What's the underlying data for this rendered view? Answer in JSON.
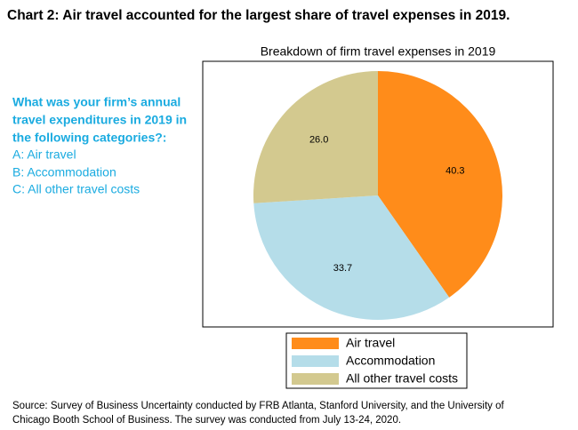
{
  "header": {
    "title": "Chart 2: Air travel accounted for the largest share of travel expenses in 2019."
  },
  "question": {
    "lines": [
      "What was your firm’s annual",
      "travel expenditures in 2019 in",
      "the following categories?:"
    ],
    "options": [
      "A: Air travel",
      "B: Accommodation",
      "C: All other travel costs"
    ]
  },
  "chart_data": {
    "type": "pie",
    "title": "Breakdown of firm travel expenses in 2019",
    "categories": [
      "Air travel",
      "Accommodation",
      "All other travel costs"
    ],
    "values": [
      40.3,
      33.7,
      26.0
    ],
    "value_labels": [
      "40.3",
      "33.7",
      "26.0"
    ],
    "colors": [
      "#ff8c1a",
      "#b5dde9",
      "#d3c98f"
    ],
    "legend": "bottom"
  },
  "source": {
    "lines": [
      "Source: Survey of Business Uncertainty conducted by FRB Atlanta, Stanford University, and the University of",
      "Chicago Booth School of Business. The survey was conducted from July 13-24, 2020."
    ]
  }
}
